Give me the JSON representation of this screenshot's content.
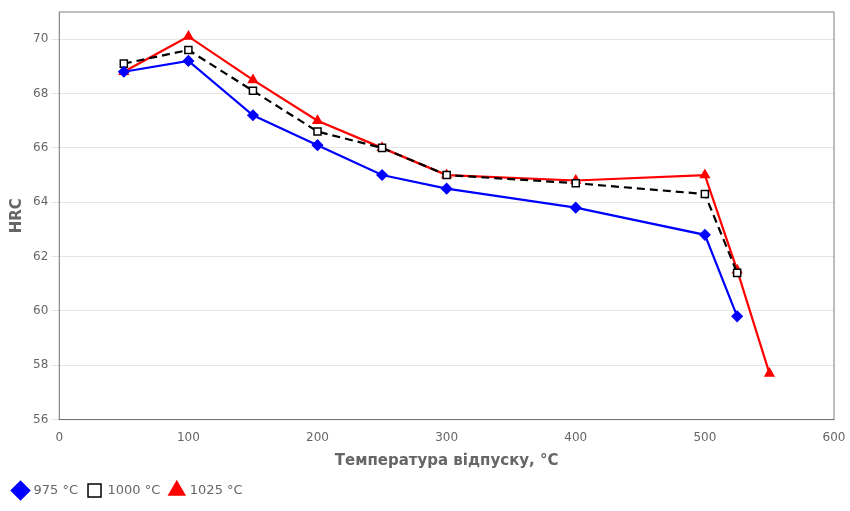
{
  "chart_data": {
    "type": "line",
    "xlabel": "Температура відпуску, °C",
    "ylabel": "HRC",
    "xlim": [
      0,
      600
    ],
    "ylim": [
      56,
      71
    ],
    "xticks": [
      0,
      100,
      200,
      300,
      400,
      500,
      600
    ],
    "yticks": [
      56,
      58,
      60,
      62,
      64,
      66,
      68,
      70
    ],
    "grid": "y",
    "legend": "lower left",
    "series": [
      {
        "name": "975 °C",
        "color": "#0000ff",
        "marker": "diamond",
        "line_style": "solid",
        "x": [
          50,
          100,
          150,
          200,
          250,
          300,
          400,
          500,
          525
        ],
        "values": [
          68.8,
          69.2,
          67.2,
          66.1,
          65.0,
          64.5,
          63.8,
          62.8,
          59.8
        ]
      },
      {
        "name": "1000 °C",
        "color": "#000000",
        "marker": "open_square",
        "line_style": "dashed",
        "x": [
          50,
          100,
          150,
          200,
          250,
          300,
          400,
          500,
          525
        ],
        "values": [
          69.1,
          69.6,
          68.1,
          66.6,
          66.0,
          65.0,
          64.7,
          64.3,
          61.4
        ]
      },
      {
        "name": "1025 °C",
        "color": "#ff0000",
        "marker": "triangle",
        "line_style": "solid",
        "x": [
          50,
          100,
          150,
          200,
          250,
          300,
          400,
          500,
          525,
          550
        ],
        "values": [
          68.8,
          70.1,
          68.5,
          67.0,
          66.0,
          65.0,
          64.8,
          65.0,
          61.5,
          57.7
        ]
      }
    ]
  }
}
